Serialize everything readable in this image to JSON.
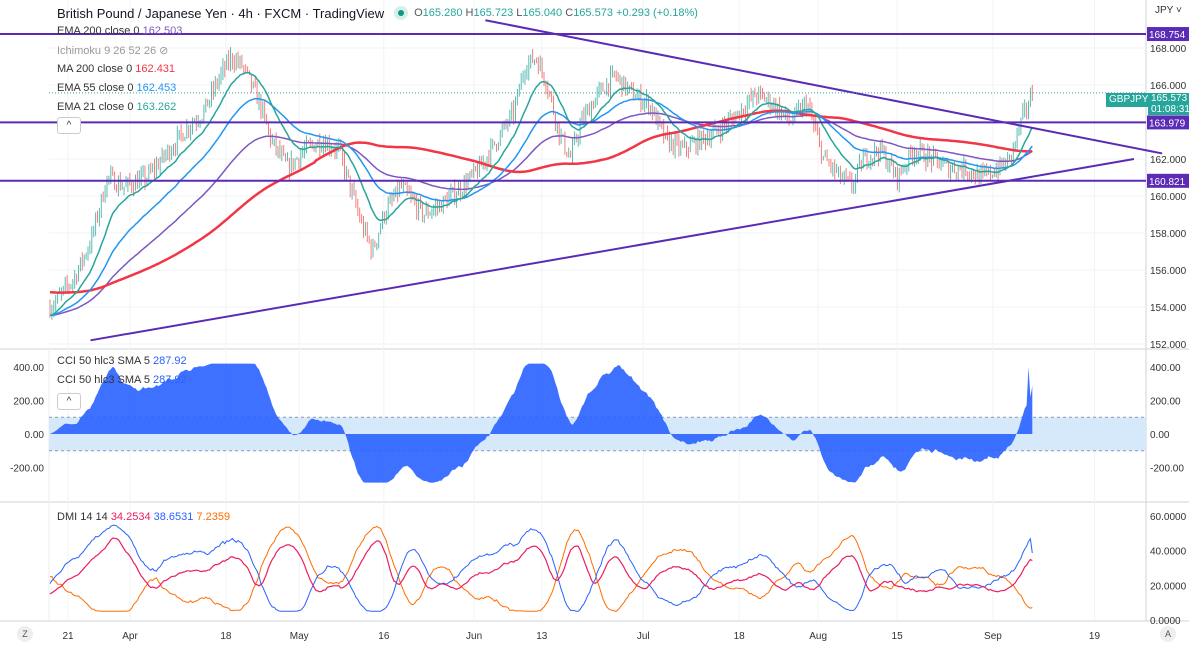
{
  "header": {
    "title": "British Pound / Japanese Yen · 4h · FXCM · TradingView",
    "ohlc": {
      "o_label": "O",
      "o": "165.280",
      "h_label": "H",
      "h": "165.723",
      "l_label": "L",
      "l": "165.040",
      "c_label": "C",
      "c": "165.573",
      "change": "+0.293 (+0.18%)"
    },
    "status_color": "#089981"
  },
  "indicators": [
    {
      "label": "EMA 200 close 0",
      "value": "162.503",
      "color": "#7e57c2"
    },
    {
      "label": "Ichimoku 9 26 52 26",
      "value": "",
      "color": "#999999",
      "icon": "eye-off-icon"
    },
    {
      "label": "MA 200 close 0",
      "value": "162.431",
      "color": "#f23645"
    },
    {
      "label": "EMA 55 close 0",
      "value": "162.453",
      "color": "#2196f3"
    },
    {
      "label": "EMA 21 close 0",
      "value": "163.262",
      "color": "#26a69a"
    }
  ],
  "collapse_label": "^",
  "price_axis": {
    "currency": "JPY ˅",
    "ticks": [
      "168.000",
      "166.000",
      "162.000",
      "160.000",
      "158.000",
      "156.000",
      "154.000",
      "152.000"
    ],
    "tick_values": [
      168,
      166,
      162,
      160,
      158,
      156,
      154,
      152
    ],
    "level_tags": [
      {
        "text": "168.754",
        "value": 168.754
      },
      {
        "text": "163.979",
        "value": 163.979
      },
      {
        "text": "160.821",
        "value": 160.821
      }
    ],
    "symbol_tag": "GBPJPY",
    "last_price": "165.573",
    "countdown": "01:08:31",
    "level_color": "#5b2bb5",
    "last_color": "#26a69a"
  },
  "cci": {
    "legend": [
      {
        "label": "CCI 50 hlc3 SMA 5",
        "value": "287.92"
      },
      {
        "label": "CCI 50 hlc3 SMA 5",
        "value": "287.92"
      }
    ],
    "ticks": [
      "400.00",
      "200.00",
      "0.00",
      "-200.00"
    ],
    "tick_values": [
      400,
      200,
      0,
      -200
    ],
    "band": [
      -100,
      100
    ],
    "color": "#2962ff"
  },
  "dmi": {
    "legend": "DMI 14 14",
    "values": [
      {
        "v": "34.2534",
        "color": "#e91e63"
      },
      {
        "v": "38.6531",
        "color": "#2962ff"
      },
      {
        "v": "7.2359",
        "color": "#ff6d00"
      }
    ],
    "ticks": [
      "60.0000",
      "40.0000",
      "20.0000",
      "0.0000"
    ],
    "tick_values": [
      60,
      40,
      20,
      0
    ]
  },
  "time_axis": {
    "labels": [
      "21",
      "Apr",
      "18",
      "May",
      "16",
      "Jun",
      "13",
      "Jul",
      "18",
      "Aug",
      "15",
      "Sep",
      "19"
    ],
    "label_dates": [
      "2022-03-21",
      "2022-04-01",
      "2022-04-18",
      "2022-05-01",
      "2022-05-16",
      "2022-06-01",
      "2022-06-13",
      "2022-07-01",
      "2022-07-18",
      "2022-08-01",
      "2022-08-15",
      "2022-09-01",
      "2022-09-19"
    ],
    "left_button": "Z",
    "right_button": "A"
  },
  "chart_data": {
    "type": "candlestick",
    "symbol": "GBPJPY",
    "timeframe": "4h",
    "ylim": [
      152,
      169.5
    ],
    "approx_close": [
      [
        "2022-03-18",
        154.0
      ],
      [
        "2022-03-22",
        155.5
      ],
      [
        "2022-03-25",
        157.5
      ],
      [
        "2022-03-28",
        161.0
      ],
      [
        "2022-03-31",
        160.5
      ],
      [
        "2022-04-04",
        161.0
      ],
      [
        "2022-04-08",
        162.5
      ],
      [
        "2022-04-12",
        164.0
      ],
      [
        "2022-04-14",
        164.5
      ],
      [
        "2022-04-17",
        166.5
      ],
      [
        "2022-04-19",
        167.5
      ],
      [
        "2022-04-21",
        167.0
      ],
      [
        "2022-04-24",
        165.0
      ],
      [
        "2022-04-26",
        163.0
      ],
      [
        "2022-04-29",
        161.5
      ],
      [
        "2022-05-02",
        162.5
      ],
      [
        "2022-05-05",
        163.0
      ],
      [
        "2022-05-08",
        162.5
      ],
      [
        "2022-05-10",
        160.5
      ],
      [
        "2022-05-12",
        158.5
      ],
      [
        "2022-05-14",
        157.0
      ],
      [
        "2022-05-16",
        159.0
      ],
      [
        "2022-05-19",
        160.5
      ],
      [
        "2022-05-23",
        159.0
      ],
      [
        "2022-05-26",
        159.5
      ],
      [
        "2022-05-30",
        160.5
      ],
      [
        "2022-06-02",
        161.5
      ],
      [
        "2022-06-05",
        163.0
      ],
      [
        "2022-06-08",
        164.5
      ],
      [
        "2022-06-10",
        167.0
      ],
      [
        "2022-06-12",
        167.5
      ],
      [
        "2022-06-14",
        166.0
      ],
      [
        "2022-06-16",
        163.5
      ],
      [
        "2022-06-18",
        162.0
      ],
      [
        "2022-06-20",
        164.0
      ],
      [
        "2022-06-23",
        165.5
      ],
      [
        "2022-06-26",
        166.5
      ],
      [
        "2022-06-29",
        165.5
      ],
      [
        "2022-07-02",
        165.0
      ],
      [
        "2022-07-05",
        163.0
      ],
      [
        "2022-07-08",
        162.5
      ],
      [
        "2022-07-11",
        163.0
      ],
      [
        "2022-07-14",
        163.5
      ],
      [
        "2022-07-18",
        164.5
      ],
      [
        "2022-07-21",
        165.5
      ],
      [
        "2022-07-24",
        165.0
      ],
      [
        "2022-07-27",
        164.0
      ],
      [
        "2022-07-30",
        165.0
      ],
      [
        "2022-08-02",
        162.0
      ],
      [
        "2022-08-05",
        161.0
      ],
      [
        "2022-08-07",
        160.5
      ],
      [
        "2022-08-09",
        162.0
      ],
      [
        "2022-08-12",
        162.5
      ],
      [
        "2022-08-15",
        161.0
      ],
      [
        "2022-08-18",
        162.5
      ],
      [
        "2022-08-21",
        162.0
      ],
      [
        "2022-08-24",
        161.5
      ],
      [
        "2022-08-27",
        161.5
      ],
      [
        "2022-08-30",
        161.0
      ],
      [
        "2022-09-02",
        161.5
      ],
      [
        "2022-09-04",
        162.0
      ],
      [
        "2022-09-06",
        164.0
      ],
      [
        "2022-09-08",
        165.573
      ]
    ],
    "horizontal_levels": [
      168.754,
      163.979,
      160.821
    ],
    "trendlines": [
      {
        "from": [
          "2022-06-03",
          169.5
        ],
        "to": [
          "2022-10-01",
          162.3
        ]
      },
      {
        "from": [
          "2022-03-25",
          152.2
        ],
        "to": [
          "2022-09-26",
          162.0
        ]
      }
    ],
    "up_color": "#26a69a",
    "down_color": "#ef5350"
  }
}
